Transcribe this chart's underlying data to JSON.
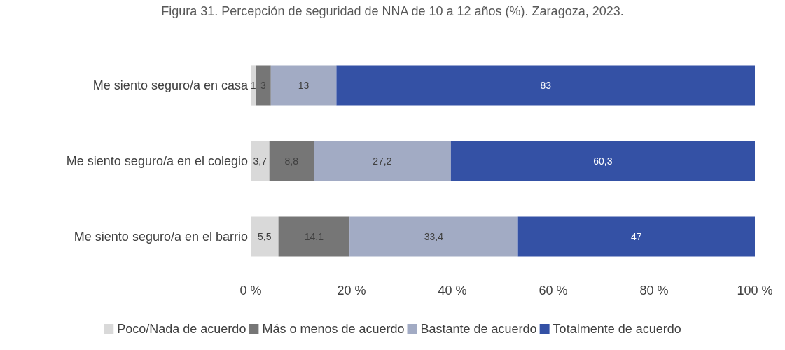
{
  "chart_data": {
    "type": "bar",
    "orientation": "horizontal",
    "stacked": true,
    "title": "Figura 31. Percepción de seguridad de NNA de 10 a 12 años (%). Zaragoza, 2023.",
    "categories": [
      "Me siento seguro/a en casa",
      "Me siento seguro/a en el colegio",
      "Me siento seguro/a en el barrio"
    ],
    "series": [
      {
        "name": "Poco/Nada de acuerdo",
        "color": "#d9d9d9",
        "values": [
          1,
          3.7,
          5.5
        ],
        "value_labels": [
          "1",
          "3,7",
          "5,5"
        ]
      },
      {
        "name": "Más o menos de acuerdo",
        "color": "#767676",
        "values": [
          3,
          8.8,
          14.1
        ],
        "value_labels": [
          "3",
          "8,8",
          "14,1"
        ]
      },
      {
        "name": "Bastante de acuerdo",
        "color": "#a2abc4",
        "values": [
          13,
          27.2,
          33.4
        ],
        "value_labels": [
          "13",
          "27,2",
          "33,4"
        ]
      },
      {
        "name": "Totalmente de acuerdo",
        "color": "#3451a5",
        "values": [
          83,
          60.3,
          47
        ],
        "value_labels": [
          "83",
          "60,3",
          "47"
        ]
      }
    ],
    "xlim": [
      0,
      100
    ],
    "xticks": [
      {
        "value": 0,
        "label": "0 %"
      },
      {
        "value": 20,
        "label": "20 %"
      },
      {
        "value": 40,
        "label": "40 %"
      },
      {
        "value": 60,
        "label": "60 %"
      },
      {
        "value": 80,
        "label": "80 %"
      },
      {
        "value": 100,
        "label": "100 %"
      }
    ],
    "grid": false,
    "legend": "bottom"
  }
}
